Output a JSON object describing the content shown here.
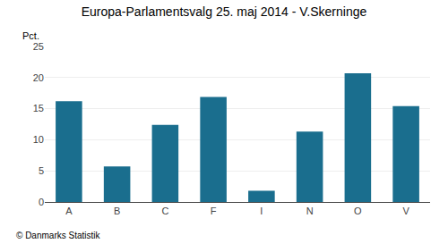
{
  "chart_data": {
    "type": "bar",
    "title": "Europa-Parlamentsvalg 25. maj 2014 - V.Skerninge",
    "ylabel": "Pct.",
    "footer": "© Danmarks Statistik",
    "categories": [
      "A",
      "B",
      "C",
      "F",
      "I",
      "N",
      "O",
      "V"
    ],
    "values": [
      16.2,
      5.7,
      12.4,
      16.9,
      1.8,
      11.3,
      20.7,
      15.4
    ],
    "color": "#1a6e8e",
    "ylim": [
      0,
      25
    ],
    "yticks": [
      0,
      5,
      10,
      15,
      20,
      25
    ],
    "grid": true
  }
}
